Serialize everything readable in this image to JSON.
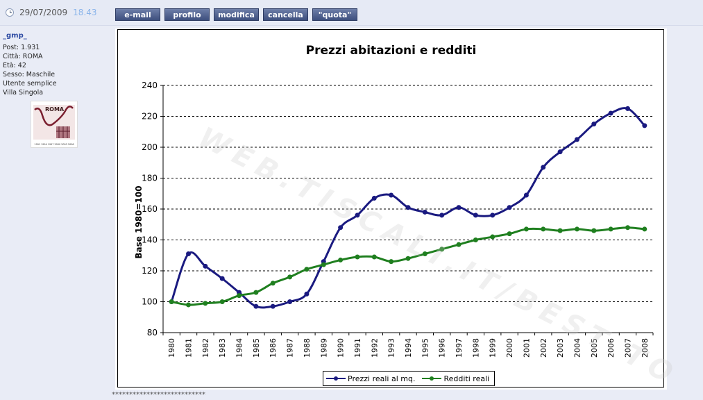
{
  "post": {
    "date": "29/07/2009",
    "time": "18.43",
    "buttons": [
      "e-mail",
      "profilo",
      "modifica",
      "cancella",
      "\"quota\""
    ]
  },
  "user": {
    "name": "_gmp_",
    "info": [
      "Post: 1.931",
      "Città: ROMA",
      "Età: 42",
      "Sesso: Maschile",
      "Utente semplice",
      "Villa Singola"
    ],
    "avatar_label": "ROMA",
    "avatar_years": "1991 1994 1997 2000 2003 2006"
  },
  "signature": "***************************",
  "watermark": "WEB.TISCALI.IT/BEST TO",
  "colors": {
    "prezzi": "#1a1a80",
    "redditi": "#1f7f1f"
  },
  "chart_data": {
    "type": "line",
    "title": "Prezzi abitazioni e redditi",
    "xlabel": "",
    "ylabel": "Base 1980=100",
    "ylim": [
      80,
      240
    ],
    "yticks": [
      80,
      100,
      120,
      140,
      160,
      180,
      200,
      220,
      240
    ],
    "grid": "horizontal dashed",
    "legend_position": "bottom",
    "categories": [
      "1980",
      "1981",
      "1982",
      "1983",
      "1984",
      "1985",
      "1986",
      "1987",
      "1988",
      "1989",
      "1990",
      "1991",
      "1992",
      "1993",
      "1994",
      "1995",
      "1996",
      "1997",
      "1998",
      "1999",
      "2000",
      "2001",
      "2002",
      "2003",
      "2004",
      "2005",
      "2006",
      "2007",
      "2008"
    ],
    "series": [
      {
        "name": "Prezzi reali al mq.",
        "values": [
          100,
          131,
          123,
          115,
          106,
          97,
          97,
          100,
          105,
          126,
          148,
          156,
          167,
          169,
          161,
          158,
          156,
          161,
          156,
          156,
          161,
          169,
          187,
          197,
          205,
          215,
          222,
          225,
          214
        ]
      },
      {
        "name": "Redditi reali",
        "values": [
          100,
          98,
          99,
          100,
          104,
          106,
          112,
          116,
          121,
          124,
          127,
          129,
          129,
          126,
          128,
          131,
          134,
          137,
          140,
          142,
          144,
          147,
          147,
          146,
          147,
          146,
          147,
          148,
          147
        ]
      }
    ]
  }
}
